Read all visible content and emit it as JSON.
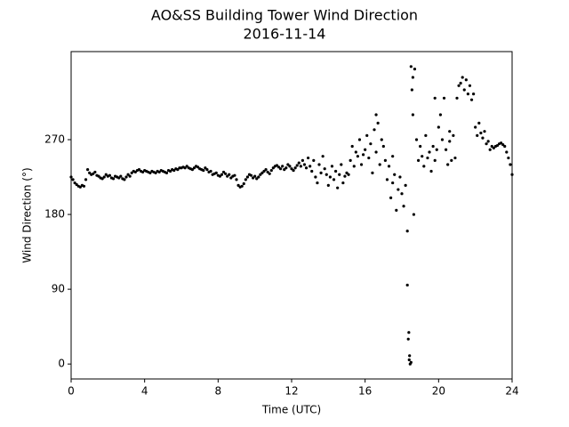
{
  "chart_data": {
    "type": "scatter",
    "title": "AO&SS Building Tower Wind Direction",
    "subtitle": "2016-11-14",
    "x_label": "Time (UTC)",
    "y_label": "Wind Direction (°)",
    "color": "#000000",
    "xlim": [
      0,
      24
    ],
    "xticks": [
      0,
      4,
      8,
      12,
      16,
      20,
      24
    ],
    "ylim": [
      -18,
      376
    ],
    "yticks": [
      0,
      90,
      180,
      270
    ],
    "x": [
      0.0,
      0.1,
      0.2,
      0.3,
      0.4,
      0.5,
      0.6,
      0.7,
      0.8,
      0.9,
      1.0,
      1.1,
      1.2,
      1.3,
      1.4,
      1.5,
      1.6,
      1.7,
      1.8,
      1.9,
      2.0,
      2.1,
      2.2,
      2.3,
      2.4,
      2.5,
      2.6,
      2.7,
      2.8,
      2.9,
      3.0,
      3.1,
      3.2,
      3.3,
      3.4,
      3.5,
      3.6,
      3.7,
      3.8,
      3.9,
      4.0,
      4.1,
      4.2,
      4.3,
      4.4,
      4.5,
      4.6,
      4.7,
      4.8,
      4.9,
      5.0,
      5.1,
      5.2,
      5.3,
      5.4,
      5.5,
      5.6,
      5.7,
      5.8,
      5.9,
      6.0,
      6.1,
      6.2,
      6.3,
      6.4,
      6.5,
      6.6,
      6.7,
      6.8,
      6.9,
      7.0,
      7.1,
      7.2,
      7.3,
      7.4,
      7.5,
      7.6,
      7.7,
      7.8,
      7.9,
      8.0,
      8.1,
      8.2,
      8.3,
      8.4,
      8.5,
      8.6,
      8.7,
      8.8,
      8.9,
      9.0,
      9.1,
      9.2,
      9.3,
      9.4,
      9.5,
      9.6,
      9.7,
      9.8,
      9.9,
      10.0,
      10.1,
      10.2,
      10.3,
      10.4,
      10.5,
      10.6,
      10.7,
      10.8,
      10.9,
      11.0,
      11.1,
      11.2,
      11.3,
      11.4,
      11.5,
      11.6,
      11.7,
      11.8,
      11.9,
      12.0,
      12.1,
      12.2,
      12.3,
      12.4,
      12.5,
      12.6,
      12.7,
      12.8,
      12.9,
      13.0,
      13.1,
      13.2,
      13.3,
      13.4,
      13.5,
      13.6,
      13.7,
      13.8,
      13.9,
      14.0,
      14.1,
      14.2,
      14.3,
      14.4,
      14.5,
      14.6,
      14.7,
      14.8,
      14.9,
      15.0,
      15.1,
      15.2,
      15.3,
      15.4,
      15.5,
      15.6,
      15.7,
      15.8,
      15.9,
      16.0,
      16.1,
      16.2,
      16.3,
      16.4,
      16.5,
      16.6,
      16.7,
      16.8,
      16.9,
      17.0,
      17.1,
      17.2,
      17.3,
      17.4,
      17.5,
      17.6,
      17.7,
      17.8,
      17.9,
      18.0,
      18.1,
      18.2,
      18.3,
      18.4,
      18.5,
      18.6,
      18.7,
      18.8,
      18.9,
      19.0,
      19.1,
      19.2,
      19.3,
      19.4,
      19.5,
      19.6,
      19.7,
      19.8,
      19.9,
      20.0,
      20.1,
      20.2,
      20.3,
      20.4,
      20.5,
      20.6,
      20.7,
      20.8,
      20.9,
      21.0,
      21.1,
      21.2,
      21.3,
      21.4,
      21.5,
      21.6,
      21.7,
      21.8,
      21.9,
      22.0,
      22.1,
      22.2,
      22.3,
      22.4,
      22.5,
      22.6,
      22.7,
      22.8,
      22.9,
      23.0,
      23.1,
      23.2,
      23.3,
      23.4,
      23.5,
      23.6,
      23.7,
      23.8,
      23.9,
      24.0,
      18.3,
      18.35,
      18.38,
      18.42,
      18.45,
      18.5,
      18.55,
      18.6,
      18.65,
      17.5,
      16.6,
      19.8,
      20.6
    ],
    "values": [
      225,
      222,
      218,
      216,
      214,
      213,
      215,
      214,
      222,
      234,
      230,
      228,
      229,
      231,
      227,
      226,
      224,
      223,
      225,
      228,
      226,
      227,
      224,
      223,
      226,
      225,
      224,
      226,
      223,
      222,
      225,
      228,
      226,
      230,
      232,
      231,
      233,
      234,
      232,
      231,
      233,
      232,
      231,
      230,
      232,
      231,
      230,
      232,
      231,
      233,
      232,
      231,
      230,
      233,
      232,
      234,
      233,
      235,
      234,
      236,
      236,
      237,
      236,
      238,
      236,
      235,
      234,
      236,
      238,
      237,
      235,
      234,
      233,
      236,
      234,
      231,
      232,
      228,
      229,
      230,
      227,
      226,
      228,
      231,
      229,
      226,
      228,
      224,
      226,
      227,
      222,
      215,
      213,
      214,
      217,
      222,
      225,
      228,
      227,
      224,
      226,
      223,
      225,
      228,
      230,
      232,
      234,
      231,
      229,
      233,
      236,
      238,
      239,
      237,
      235,
      238,
      234,
      236,
      240,
      238,
      235,
      233,
      236,
      239,
      242,
      238,
      245,
      240,
      236,
      248,
      238,
      232,
      245,
      225,
      218,
      240,
      230,
      250,
      235,
      228,
      215,
      225,
      238,
      222,
      232,
      212,
      228,
      240,
      218,
      226,
      230,
      228,
      245,
      262,
      238,
      255,
      250,
      270,
      240,
      252,
      258,
      275,
      248,
      265,
      230,
      282,
      255,
      290,
      240,
      270,
      262,
      245,
      222,
      238,
      200,
      218,
      228,
      185,
      210,
      225,
      205,
      190,
      215,
      160,
      5,
      2,
      345,
      355,
      270,
      245,
      262,
      250,
      238,
      275,
      248,
      255,
      232,
      262,
      245,
      258,
      285,
      300,
      270,
      320,
      258,
      240,
      268,
      245,
      275,
      248,
      320,
      335,
      338,
      345,
      330,
      342,
      325,
      335,
      318,
      325,
      285,
      275,
      290,
      278,
      272,
      280,
      265,
      268,
      258,
      262,
      260,
      262,
      263,
      265,
      266,
      264,
      262,
      255,
      248,
      240,
      228,
      95,
      30,
      38,
      10,
      0,
      358,
      330,
      300,
      180,
      250,
      300,
      320,
      280
    ]
  }
}
